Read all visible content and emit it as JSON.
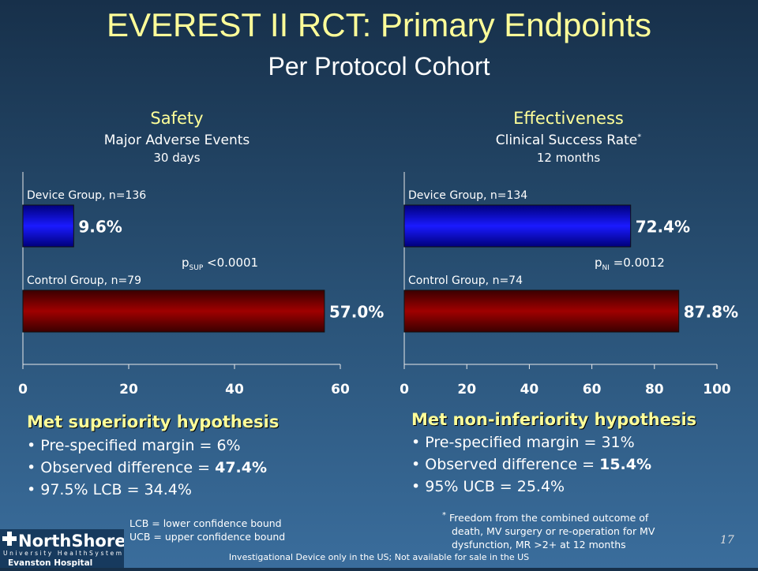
{
  "title": "EVEREST II RCT: Primary Endpoints",
  "subtitle": "Per Protocol Cohort",
  "left_panel": {
    "heading": "Safety",
    "subheading": "Major Adverse Events",
    "timeframe": "30 days",
    "device_label": "Device Group, n=136",
    "control_label": "Control Group, n=79",
    "device_value_label": "9.6%",
    "control_value_label": "57.0%",
    "p_prefix": "p",
    "p_sub": "SUP",
    "p_text": " <0.0001",
    "result_title": "Met superiority hypothesis",
    "bullets": [
      {
        "text": "Pre-specified margin = 6%",
        "emph": ""
      },
      {
        "text": "Observed difference = ",
        "emph": "47.4%"
      },
      {
        "text": "97.5% LCB = 34.4%",
        "emph": ""
      }
    ],
    "footnote_lines": [
      "LCB = lower confidence bound",
      "UCB = upper confidence bound"
    ]
  },
  "right_panel": {
    "heading": "Effectiveness",
    "subheading": "Clinical Success Rate",
    "subheading_mark": "*",
    "timeframe": "12 months",
    "device_label": "Device Group, n=134",
    "control_label": "Control Group, n=74",
    "device_value_label": "72.4%",
    "control_value_label": "87.8%",
    "p_prefix": "p",
    "p_sub": "NI",
    "p_text": " =0.0012",
    "result_title": "Met non-inferiority hypothesis",
    "bullets": [
      {
        "text": "Pre-specified margin = 31%",
        "emph": ""
      },
      {
        "text": "Observed difference = ",
        "emph": "15.4%"
      },
      {
        "text": "95% UCB = 25.4%",
        "emph": ""
      }
    ],
    "footnote_mark": "*",
    "footnote_lines": [
      "Freedom from the combined outcome of",
      "death, MV surgery or re-operation for MV",
      "dysfunction, MR >2+ at 12 months"
    ]
  },
  "page_number": "17",
  "disclaimer": "Investigational Device only in the US; Not available for sale in the US",
  "logo": {
    "name": "NorthShore",
    "tagline": "University HealthSystem",
    "site": "Evanston Hospital"
  },
  "colors": {
    "title": "#ffff99",
    "device_bar": "#0000ff",
    "control_bar": "#8b0000"
  },
  "chart_data": [
    {
      "type": "bar",
      "orientation": "horizontal",
      "categories": [
        "Device Group, n=136",
        "Control Group, n=79"
      ],
      "values": [
        9.6,
        57.0
      ],
      "xlim": [
        0,
        60
      ],
      "xticks": [
        0,
        20,
        40,
        60
      ],
      "title": "Safety"
    },
    {
      "type": "bar",
      "orientation": "horizontal",
      "categories": [
        "Device Group, n=134",
        "Control Group, n=74"
      ],
      "values": [
        72.4,
        87.8
      ],
      "xlim": [
        0,
        100
      ],
      "xticks": [
        0,
        20,
        40,
        60,
        80,
        100
      ],
      "title": "Effectiveness"
    }
  ]
}
